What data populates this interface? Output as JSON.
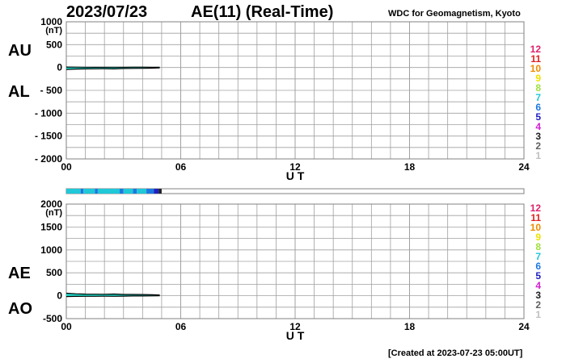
{
  "header": {
    "date": "2023/07/23",
    "title": "AE(11) (Real-Time)",
    "source": "WDC for Geomagnetism, Kyoto"
  },
  "footer": {
    "created": "[Created at 2023-07-23 05:00UT]"
  },
  "colors": {
    "grid": "#a0a0a0",
    "fill": "#20d8c8",
    "line": "#000000",
    "bar_main": "#20d8c8",
    "bar_accent": "#2050e0",
    "bar_dark": "#5010c0"
  },
  "color_scale": [
    {
      "label": "12",
      "color": "#e0206a"
    },
    {
      "label": "11",
      "color": "#e02020"
    },
    {
      "label": "10",
      "color": "#f08a00"
    },
    {
      "label": "9",
      "color": "#f0e000"
    },
    {
      "label": "8",
      "color": "#a0e040"
    },
    {
      "label": "7",
      "color": "#20c8d8"
    },
    {
      "label": "6",
      "color": "#1c78e0"
    },
    {
      "label": "5",
      "color": "#2020c0"
    },
    {
      "label": "4",
      "color": "#d020d0"
    },
    {
      "label": "3",
      "color": "#202020"
    },
    {
      "label": "2",
      "color": "#606060"
    },
    {
      "label": "1",
      "color": "#c0c0c0"
    }
  ],
  "activity_bar": {
    "hours_covered": [
      0,
      5
    ],
    "segments": [
      {
        "from": 0.0,
        "to": 0.75,
        "level": "7"
      },
      {
        "from": 0.75,
        "to": 0.9,
        "level": "6"
      },
      {
        "from": 0.9,
        "to": 1.5,
        "level": "7"
      },
      {
        "from": 1.5,
        "to": 1.65,
        "level": "6"
      },
      {
        "from": 1.65,
        "to": 2.8,
        "level": "7"
      },
      {
        "from": 2.8,
        "to": 3.0,
        "level": "6"
      },
      {
        "from": 3.0,
        "to": 3.5,
        "level": "7"
      },
      {
        "from": 3.5,
        "to": 3.7,
        "level": "6"
      },
      {
        "from": 3.7,
        "to": 4.2,
        "level": "7"
      },
      {
        "from": 4.2,
        "to": 4.6,
        "level": "6"
      },
      {
        "from": 4.6,
        "to": 4.85,
        "level": "5"
      },
      {
        "from": 4.85,
        "to": 5.0,
        "level": "3"
      }
    ]
  },
  "chart_data": [
    {
      "type": "area",
      "panel": "AU/AL",
      "labels": {
        "upper": "AU",
        "lower": "AL"
      },
      "ylabel": "(nT)",
      "xlabel": "U T",
      "x_ticks": [
        "00",
        "06",
        "12",
        "18",
        "24"
      ],
      "y_ticks": [
        "1000",
        "500",
        "0",
        "- 500",
        "- 1000",
        "- 1500",
        "- 2000"
      ],
      "xlim": [
        0,
        24
      ],
      "ylim": [
        -2000,
        1000
      ],
      "grid": true,
      "x": [
        0,
        0.5,
        1,
        1.5,
        2,
        2.5,
        3,
        3.5,
        4,
        4.5,
        4.9
      ],
      "series": [
        {
          "name": "AU",
          "values": [
            10,
            8,
            6,
            5,
            6,
            7,
            6,
            8,
            9,
            7,
            6
          ]
        },
        {
          "name": "AL",
          "values": [
            -45,
            -35,
            -30,
            -28,
            -25,
            -30,
            -22,
            -20,
            -18,
            -15,
            -10
          ]
        }
      ]
    },
    {
      "type": "area",
      "panel": "AE/AO",
      "labels": {
        "upper": "AE",
        "lower": "AO"
      },
      "ylabel": "(nT)",
      "xlabel": "U T",
      "x_ticks": [
        "00",
        "06",
        "12",
        "18",
        "24"
      ],
      "y_ticks": [
        "2000",
        "1500",
        "1000",
        "500",
        "0",
        "-500"
      ],
      "xlim": [
        0,
        24
      ],
      "ylim": [
        -500,
        2000
      ],
      "grid": true,
      "x": [
        0,
        0.5,
        1,
        1.5,
        2,
        2.5,
        3,
        3.5,
        4,
        4.5,
        4.9
      ],
      "series": [
        {
          "name": "AE",
          "values": [
            55,
            43,
            36,
            33,
            31,
            37,
            28,
            28,
            27,
            22,
            16
          ]
        },
        {
          "name": "AO",
          "values": [
            -18,
            -14,
            -12,
            -12,
            -10,
            -12,
            -8,
            -6,
            -5,
            -4,
            -2
          ]
        }
      ]
    }
  ]
}
